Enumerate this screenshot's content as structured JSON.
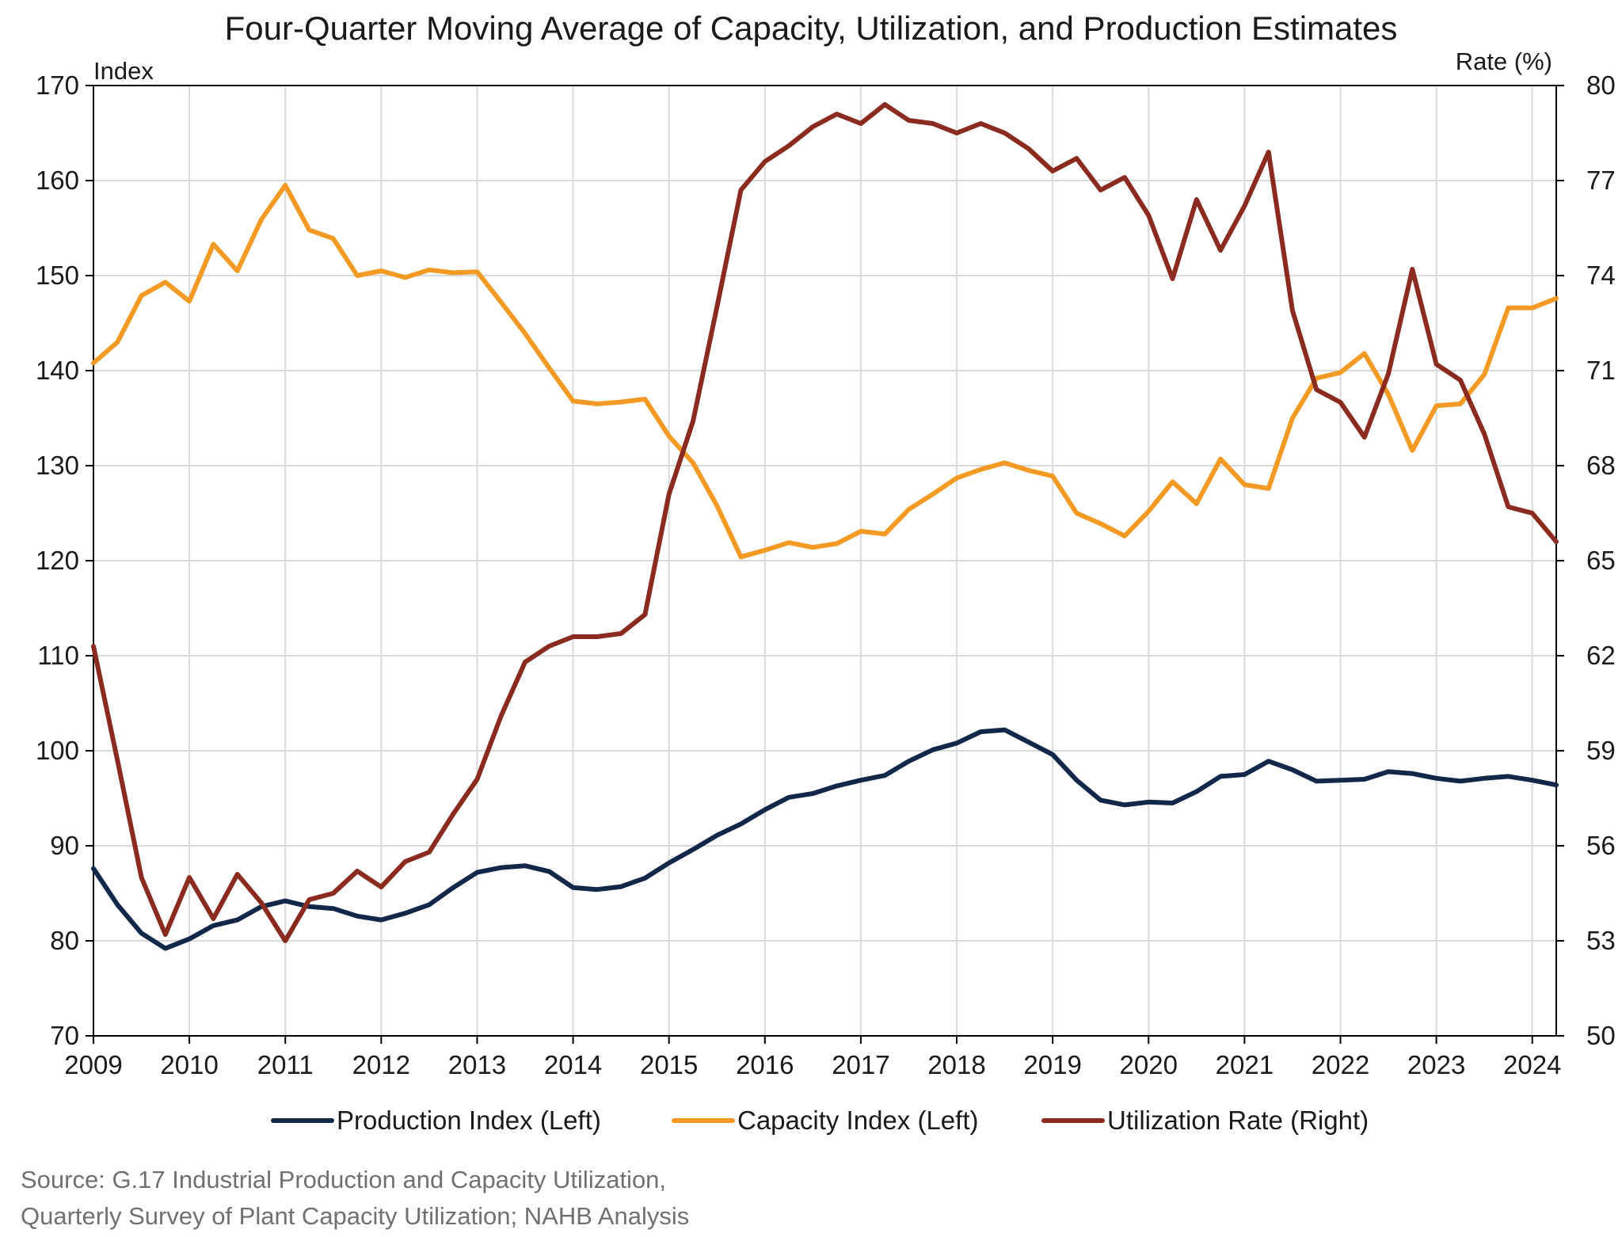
{
  "chart_data": {
    "type": "line",
    "title": "Four-Quarter Moving Average of Capacity, Utilization, and Production Estimates",
    "ylabel_left": "Index",
    "ylabel_right": "Rate (%)",
    "ylim_left": [
      70,
      170
    ],
    "yticks_left": [
      "70",
      "80",
      "90",
      "100",
      "110",
      "120",
      "130",
      "140",
      "150",
      "160",
      "170"
    ],
    "ylim_right": [
      50,
      80
    ],
    "yticks_right": [
      "50",
      "53",
      "56",
      "59",
      "62",
      "65",
      "68",
      "71",
      "74",
      "77",
      "80"
    ],
    "xlim": [
      2009,
      2024.25
    ],
    "xticks": [
      "2009",
      "2010",
      "2011",
      "2012",
      "2013",
      "2014",
      "2015",
      "2016",
      "2017",
      "2018",
      "2019",
      "2020",
      "2021",
      "2022",
      "2023",
      "2024"
    ],
    "grid": true,
    "legend_position": "bottom",
    "x": [
      2009.0,
      2009.25,
      2009.5,
      2009.75,
      2010.0,
      2010.25,
      2010.5,
      2010.75,
      2011.0,
      2011.25,
      2011.5,
      2011.75,
      2012.0,
      2012.25,
      2012.5,
      2012.75,
      2013.0,
      2013.25,
      2013.5,
      2013.75,
      2014.0,
      2014.25,
      2014.5,
      2014.75,
      2015.0,
      2015.25,
      2015.5,
      2015.75,
      2016.0,
      2016.25,
      2016.5,
      2016.75,
      2017.0,
      2017.25,
      2017.5,
      2017.75,
      2018.0,
      2018.25,
      2018.5,
      2018.75,
      2019.0,
      2019.25,
      2019.5,
      2019.75,
      2020.0,
      2020.25,
      2020.5,
      2020.75,
      2021.0,
      2021.25,
      2021.5,
      2021.75,
      2022.0,
      2022.25,
      2022.5,
      2022.75,
      2023.0,
      2023.25,
      2023.5,
      2023.75,
      2024.0,
      2024.25
    ],
    "series": [
      {
        "name": "Production Index (Left)",
        "axis": "left",
        "color": "#13274a",
        "values": [
          87.6,
          83.8,
          80.8,
          79.2,
          80.2,
          81.6,
          82.2,
          83.6,
          84.2,
          83.6,
          83.4,
          82.6,
          82.2,
          82.9,
          83.8,
          85.6,
          87.2,
          87.7,
          87.9,
          87.3,
          85.6,
          85.4,
          85.7,
          86.6,
          88.2,
          89.6,
          91.1,
          92.3,
          93.8,
          95.1,
          95.5,
          96.3,
          96.9,
          97.4,
          98.9,
          100.1,
          100.8,
          102.0,
          102.2,
          100.9,
          99.6,
          96.9,
          94.8,
          94.3,
          94.6,
          94.5,
          95.7,
          97.3,
          97.5,
          98.9,
          98.0,
          96.8,
          96.9,
          97.0,
          97.8,
          97.6,
          97.1,
          96.8,
          97.1,
          97.3,
          96.9,
          96.4
        ]
      },
      {
        "name": "Capacity Index (Left)",
        "axis": "left",
        "color": "#f39a24",
        "values": [
          140.8,
          143.0,
          147.9,
          149.3,
          147.3,
          153.3,
          150.5,
          155.9,
          159.5,
          154.8,
          153.9,
          150.0,
          150.5,
          149.8,
          150.6,
          150.3,
          150.4,
          147.2,
          143.9,
          140.3,
          136.8,
          136.5,
          136.7,
          137.0,
          133.1,
          130.3,
          125.8,
          120.4,
          121.1,
          121.9,
          121.4,
          121.8,
          123.1,
          122.8,
          125.4,
          127.0,
          128.7,
          129.6,
          130.3,
          129.5,
          128.9,
          125.0,
          123.9,
          122.6,
          125.2,
          128.3,
          126.0,
          130.7,
          128.0,
          127.6,
          135.0,
          139.2,
          139.8,
          141.8,
          137.5,
          131.6,
          136.3,
          136.5,
          139.6,
          146.6,
          146.6,
          147.6
        ]
      },
      {
        "name": "Utilization Rate (Right)",
        "axis": "right",
        "color": "#8b2a1e",
        "values": [
          62.3,
          58.7,
          55.0,
          53.2,
          55.0,
          53.7,
          55.1,
          54.2,
          53.0,
          54.3,
          54.5,
          55.2,
          54.7,
          55.5,
          55.8,
          57.0,
          58.1,
          60.1,
          61.8,
          62.3,
          62.6,
          62.6,
          62.7,
          63.3,
          67.1,
          69.4,
          73.0,
          76.7,
          77.6,
          78.1,
          78.7,
          79.1,
          78.8,
          79.4,
          78.9,
          78.8,
          78.5,
          78.8,
          78.5,
          78.0,
          77.3,
          77.7,
          76.7,
          77.1,
          75.9,
          73.9,
          76.4,
          74.8,
          76.2,
          77.9,
          72.9,
          70.4,
          70.0,
          68.9,
          70.9,
          74.2,
          71.2,
          70.7,
          69.0,
          66.7,
          66.5,
          65.6
        ]
      }
    ]
  },
  "source_lines": [
    "Source: G.17 Industrial Production and Capacity Utilization,",
    "Quarterly Survey of Plant Capacity Utilization; NAHB Analysis"
  ]
}
